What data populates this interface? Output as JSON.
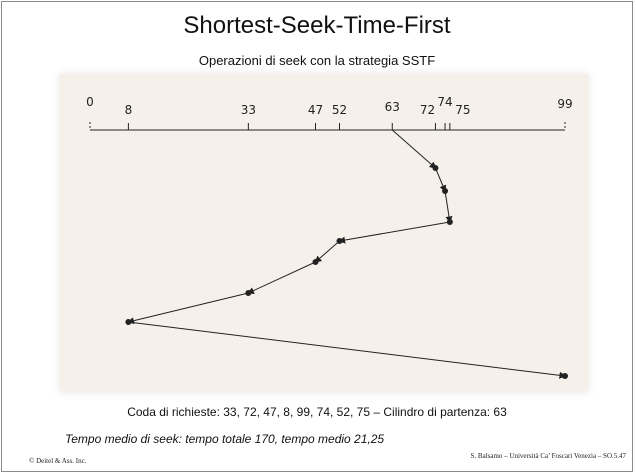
{
  "slide": {
    "title": "Shortest-Seek-Time-First",
    "subtitle": "Operazioni di seek con la strategia  SSTF",
    "queue_caption": "Coda di richieste: 33, 72, 47, 8, 99, 74, 52, 75 – Cilindro di partenza: 63",
    "time_caption": "Tempo medio di seek: tempo totale 170, tempo medio 21,25",
    "footer_left": "© Deitel & Ass. Inc.",
    "footer_right": "S. Balsamo – Università Ca’ Foscari Venezia – SO.5.47"
  },
  "diagram": {
    "axis_min": 0,
    "axis_max": 99,
    "ticks": [
      {
        "label": "0",
        "value": 0
      },
      {
        "label": "8",
        "value": 8
      },
      {
        "label": "33",
        "value": 33
      },
      {
        "label": "47",
        "value": 47
      },
      {
        "label": "52",
        "value": 52
      },
      {
        "label": "63",
        "value": 63
      },
      {
        "label": "72",
        "value": 72
      },
      {
        "label": "74",
        "value": 74
      },
      {
        "label": "75",
        "value": 75
      },
      {
        "label": "99",
        "value": 99
      }
    ],
    "start_cylinder": 63,
    "seek_order": [
      72,
      74,
      75,
      52,
      47,
      33,
      8,
      99
    ]
  }
}
